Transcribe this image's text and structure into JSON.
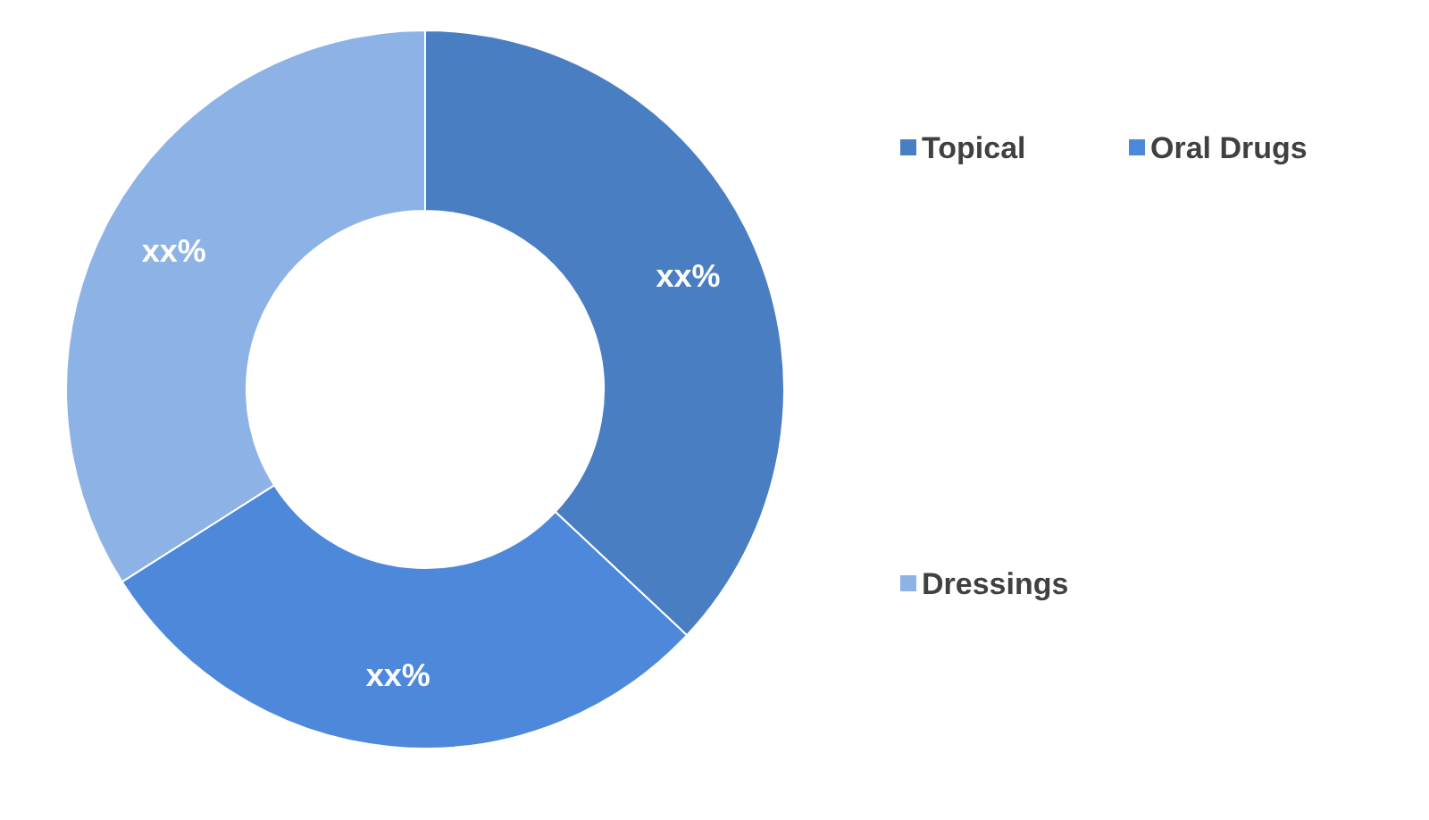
{
  "chart_data": {
    "type": "donut",
    "categories": [
      "Topical",
      "Oral Drugs",
      "Dressings"
    ],
    "values": [
      37,
      29,
      34
    ],
    "colors": [
      "#4a7ec3",
      "#4d88db",
      "#8db3e6"
    ],
    "value_labels": [
      "xx%",
      "xx%",
      "xx%"
    ],
    "legend": "right"
  }
}
